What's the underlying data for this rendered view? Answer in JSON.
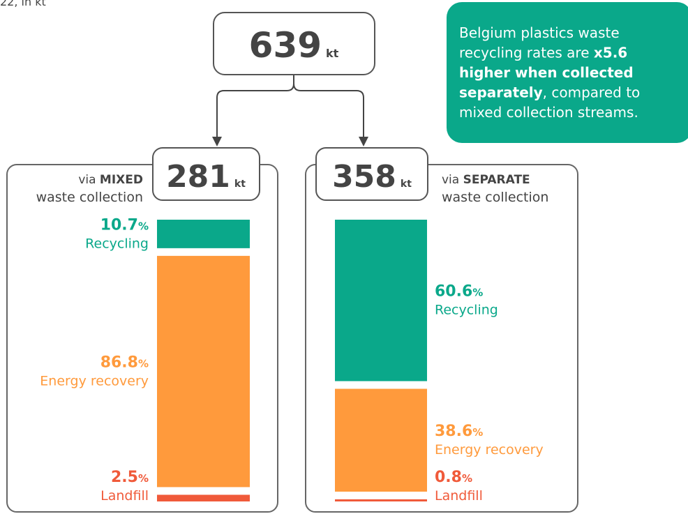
{
  "chart_data": {
    "type": "stacked_bar",
    "subtitle": "22, in kt",
    "total": {
      "value": 639,
      "unit": "kt"
    },
    "value_unit": "%",
    "callout": [
      [
        {
          "text": "Belgium plastics waste",
          "bold": false
        }
      ],
      [
        {
          "text": "recycling rates are ",
          "bold": false
        },
        {
          "text": "x5.6",
          "bold": true
        }
      ],
      [
        {
          "text": "higher when collected",
          "bold": true
        }
      ],
      [
        {
          "text": "separately",
          "bold": true
        },
        {
          "text": ", compared to",
          "bold": false
        }
      ],
      [
        {
          "text": "mixed collection streams.",
          "bold": false
        }
      ]
    ],
    "groups": [
      {
        "value": 281,
        "unit": "kt",
        "label_prefix": "via ",
        "label_bold": "MIXED",
        "label_rest": "waste collection",
        "segments": [
          {
            "name": "Recycling",
            "value": 10.7,
            "color": "#0aa88a"
          },
          {
            "name": "Energy recovery",
            "value": 86.8,
            "color": "#ff9a3c"
          },
          {
            "name": "Landfill",
            "value": 2.5,
            "color": "#f05a3a"
          }
        ]
      },
      {
        "value": 358,
        "unit": "kt",
        "label_prefix": "via ",
        "label_bold": "SEPARATE",
        "label_rest": "waste collection",
        "segments": [
          {
            "name": "Recycling",
            "value": 60.6,
            "color": "#0aa88a"
          },
          {
            "name": "Energy recovery",
            "value": 38.6,
            "color": "#ff9a3c"
          },
          {
            "name": "Landfill",
            "value": 0.8,
            "color": "#f05a3a"
          }
        ]
      }
    ]
  }
}
